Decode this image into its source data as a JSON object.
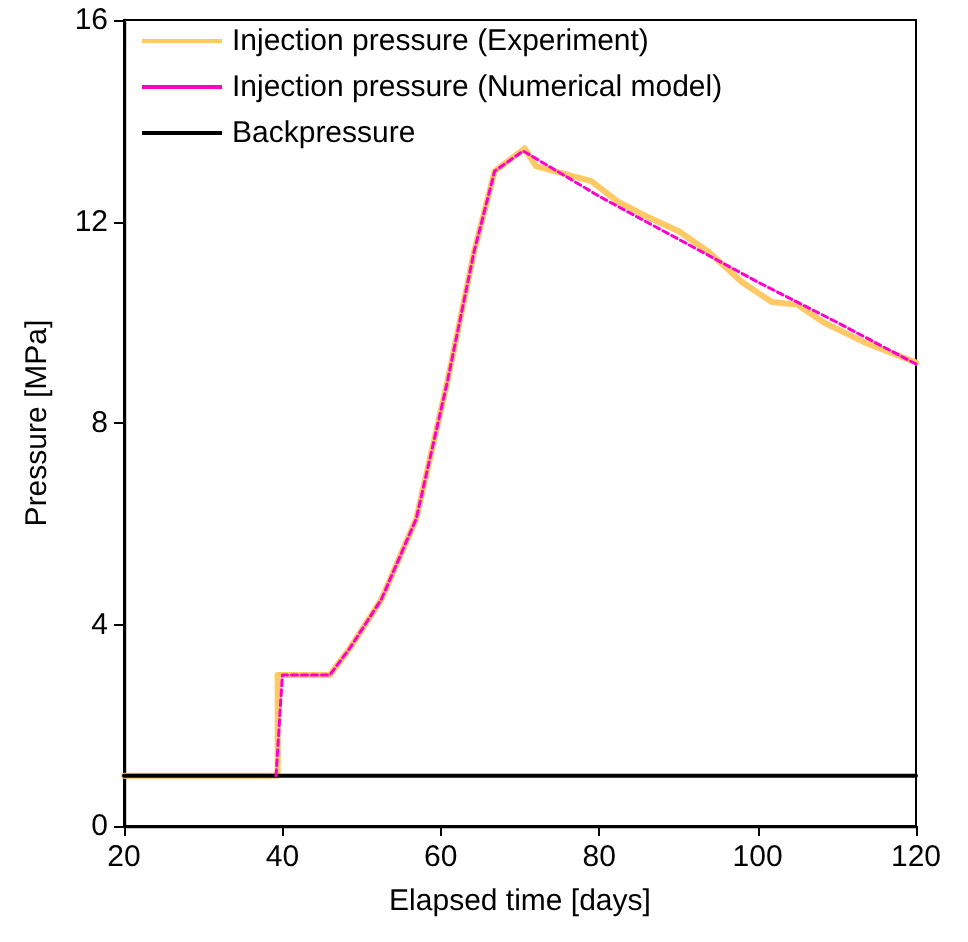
{
  "chart_data": {
    "type": "line",
    "xlabel": "Elapsed time [days]",
    "ylabel": "Pressure [MPa]",
    "xlim": [
      20,
      120
    ],
    "xticks": [
      20,
      40,
      60,
      80,
      100,
      120
    ],
    "ylim": [
      0,
      16
    ],
    "yticks": [
      0,
      4,
      8,
      12,
      16
    ],
    "grid": false,
    "legend": "top left",
    "marker": "none",
    "series": [
      {
        "name": "Injection pressure (Experiment)",
        "color": "#ffc966",
        "line_style": "solid",
        "x": [
          20,
          39.4,
          39.4,
          46,
          48.6,
          52.5,
          56.9,
          60.8,
          64.2,
          66.8,
          70.6,
          72,
          79,
          82.3,
          86,
          90.1,
          93.8,
          98,
          101.8,
          105,
          108.3,
          113.5,
          120
        ],
        "values": [
          1,
          1,
          3,
          3,
          3.55,
          4.5,
          6.1,
          8.8,
          11.4,
          13,
          13.45,
          13.1,
          12.8,
          12.4,
          12.1,
          11.8,
          11.4,
          10.8,
          10.4,
          10.35,
          10,
          9.6,
          9.2
        ]
      },
      {
        "name": "Injection pressure (Numerical model)",
        "color": "#ff00cc",
        "line_style": "dashed",
        "x": [
          39.2,
          40,
          46,
          48.6,
          52.5,
          56.9,
          60.8,
          64.2,
          66.8,
          70.4,
          80,
          90,
          100,
          110,
          120
        ],
        "values": [
          1,
          3,
          3,
          3.55,
          4.5,
          6.1,
          8.8,
          11.4,
          13,
          13.4,
          12.5,
          11.65,
          10.8,
          10,
          9.17
        ]
      },
      {
        "name": "Backpressure",
        "color": "#000000",
        "line_style": "solid",
        "x": [
          20,
          120
        ],
        "values": [
          1,
          1
        ]
      }
    ]
  }
}
